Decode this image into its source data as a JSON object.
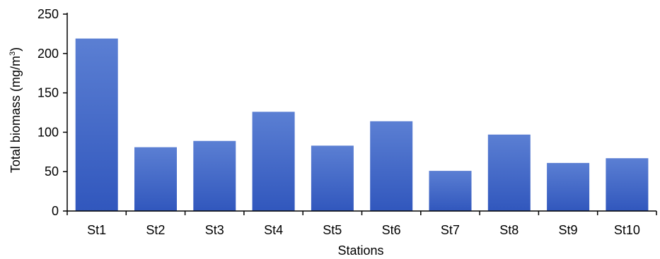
{
  "chart_data": {
    "type": "bar",
    "categories": [
      "St1",
      "St2",
      "St3",
      "St4",
      "St5",
      "St6",
      "St7",
      "St8",
      "St9",
      "St10"
    ],
    "values": [
      219,
      81,
      89,
      126,
      83,
      114,
      51,
      97,
      61,
      67
    ],
    "title": "",
    "xlabel": "Stations",
    "ylabel": {
      "text": "Total biomass (mg/m",
      "superscript": "3",
      "suffix": ")"
    },
    "ylim": [
      0,
      250
    ],
    "yticks": [
      0,
      50,
      100,
      150,
      200,
      250
    ],
    "grid": false,
    "legend": "none",
    "colors": {
      "bar_top": "#5b7fd3",
      "bar_bottom": "#3157bd",
      "axis": "#000000"
    }
  }
}
